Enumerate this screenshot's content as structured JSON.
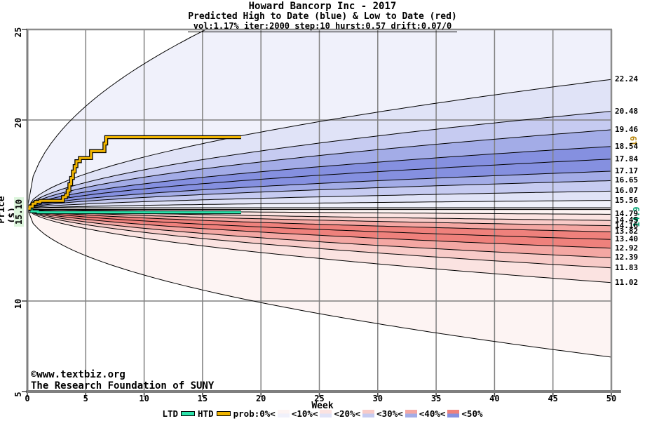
{
  "header": {
    "title": "Howard Bancorp Inc - 2017",
    "subtitle": "Predicted High to Date (blue) &  Low to Date (red)",
    "params": "vol:1.17% iter:2000 step:10 hurst:0.57 drift:0.07/0"
  },
  "y_axis": {
    "label": "Price ($)",
    "ticks": [
      "25",
      "20",
      "10",
      "5"
    ],
    "tick_values": [
      25,
      20,
      10,
      5
    ],
    "start_price_label": "15.10",
    "start_price_value": 15.1,
    "range": [
      5,
      25
    ]
  },
  "x_axis": {
    "label": "Week",
    "ticks": [
      "0",
      "5",
      "10",
      "15",
      "20",
      "25",
      "30",
      "35",
      "40",
      "45",
      "50"
    ],
    "tick_values": [
      0,
      5,
      10,
      15,
      20,
      25,
      30,
      35,
      40,
      45,
      50
    ],
    "range": [
      0,
      50
    ]
  },
  "right_axis": {
    "labels": [
      "22.24",
      "20.48",
      "19.46",
      "18.54",
      "17.84",
      "17.17",
      "16.65",
      "16.07",
      "15.56",
      "14.79",
      "14.45",
      "14.16",
      "13.82",
      "13.40",
      "12.92",
      "12.39",
      "11.83",
      "11.02"
    ],
    "label_values": [
      22.24,
      20.48,
      19.46,
      18.54,
      17.84,
      17.17,
      16.65,
      16.07,
      15.56,
      14.79,
      14.45,
      14.16,
      13.82,
      13.4,
      12.92,
      12.39,
      11.83,
      11.02
    ],
    "htd_final_label": "19",
    "htd_final_color": "#b8860b",
    "ltd_final_label": "14.9",
    "ltd_final_color": "#00a070"
  },
  "chart_data": {
    "type": "area",
    "description": "Monte Carlo fan chart: nested probability bands for predicted high-to-date (blue, above start price) and low-to-date (red, below start price)",
    "start": {
      "week": 0,
      "price": 15.1
    },
    "weeks_range": [
      0,
      50
    ],
    "price_range": [
      5,
      25
    ],
    "grid": {
      "vertical_weeks": [
        5,
        10,
        15,
        20,
        25,
        30,
        35,
        40,
        45
      ],
      "horizontal_prices": [
        10,
        20
      ]
    },
    "curve_exponent": 0.57,
    "envelope_exponent": 0.5,
    "high_fan": {
      "quantile_boundaries_week50": [
        22.24,
        20.48,
        19.46,
        18.54,
        17.84,
        17.17,
        16.65,
        16.07,
        15.56
      ],
      "envelope_week50": 33.0,
      "min_flat": 15.1,
      "band_colors": [
        "#f0f1fb",
        "#e0e3f7",
        "#c6cbf1",
        "#a3ace7",
        "#8590e0"
      ]
    },
    "low_fan": {
      "quantile_boundaries_week50": [
        14.79,
        14.45,
        14.16,
        13.82,
        13.4,
        12.92,
        12.39,
        11.83,
        11.02
      ],
      "envelope_week50": 6.9,
      "max_flat": 15.1,
      "band_colors": [
        "#fdf4f3",
        "#fbe3e1",
        "#f8cbc8",
        "#f4a7a3",
        "#ef817c"
      ]
    },
    "flat_reference_prices": [
      15.145,
      15.055
    ],
    "htd_line": {
      "name": "HTD",
      "color": "#f0b400",
      "outline": "#000000",
      "final_value": 19.05,
      "steps": [
        [
          0,
          15.1
        ],
        [
          0.2,
          15.22
        ],
        [
          0.45,
          15.38
        ],
        [
          0.7,
          15.48
        ],
        [
          1.1,
          15.53
        ],
        [
          2.9,
          15.53
        ],
        [
          3.05,
          15.74
        ],
        [
          3.3,
          15.85
        ],
        [
          3.45,
          16.1
        ],
        [
          3.6,
          16.45
        ],
        [
          3.75,
          16.8
        ],
        [
          3.9,
          17.15
        ],
        [
          4.05,
          17.45
        ],
        [
          4.2,
          17.72
        ],
        [
          4.5,
          17.9
        ],
        [
          5.25,
          17.9
        ],
        [
          5.45,
          18.28
        ],
        [
          6.45,
          18.28
        ],
        [
          6.6,
          18.7
        ],
        [
          6.75,
          19.05
        ],
        [
          18.3,
          19.05
        ]
      ]
    },
    "ltd_line": {
      "name": "LTD",
      "color": "#2ce3ab",
      "outline": "#000000",
      "final_value": 14.9,
      "steps": [
        [
          0,
          15.07
        ],
        [
          0.35,
          14.95
        ],
        [
          0.9,
          14.9
        ],
        [
          18.3,
          14.9
        ]
      ]
    }
  },
  "legend": {
    "ltd_label": "LTD",
    "htd_label": "HTD",
    "ltd_color": "#2ce3ab",
    "htd_color": "#f0b400",
    "prob_labels": [
      "prob:0%<",
      "<10%<",
      "<20%<",
      "<30%<",
      "<40%<",
      "<50%"
    ],
    "swatches": [
      {
        "top": "#fdf4f3",
        "bottom": "#f0f1fb"
      },
      {
        "top": "#fbe3e1",
        "bottom": "#e0e3f7"
      },
      {
        "top": "#f8cbc8",
        "bottom": "#c6cbf1"
      },
      {
        "top": "#f4a7a3",
        "bottom": "#a3ace7"
      },
      {
        "top": "#ef817c",
        "bottom": "#8590e0"
      }
    ]
  },
  "watermark": {
    "line1": "©www.textbiz.org",
    "line2": "The Research Foundation of SUNY",
    "color": "#0000aa"
  },
  "frame_color": "#7f7f7f",
  "grid_color": "#808080"
}
